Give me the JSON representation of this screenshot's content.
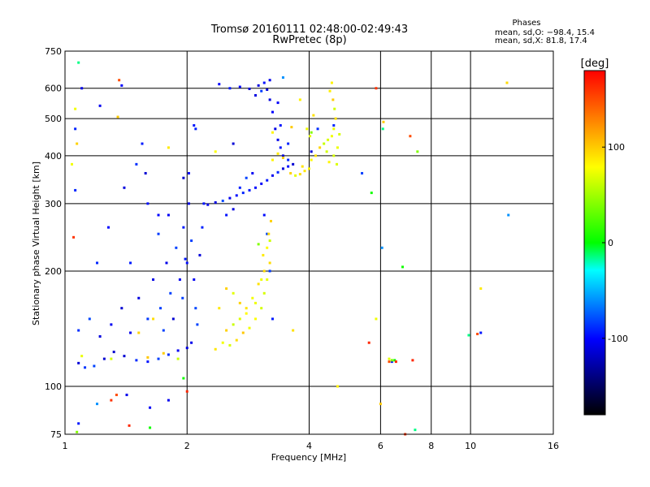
{
  "chart_data": {
    "type": "scatter",
    "title": "Tromsø 20160111 02:48:00-02:49:43",
    "subtitle": "RwPretec (8p)",
    "xlabel": "Frequency [MHz]",
    "ylabel": "Stationary phase Virtual Height [km]",
    "x_scale": "log",
    "y_scale": "log",
    "xlim": [
      1,
      16
    ],
    "ylim": [
      75,
      750
    ],
    "x_ticks": [
      1,
      2,
      4,
      6,
      8,
      10,
      16
    ],
    "y_ticks": [
      75,
      100,
      200,
      300,
      400,
      500,
      600,
      750
    ],
    "grid": true,
    "stats": {
      "heading": "Phases",
      "line_o": "mean, sd,O: −98.4, 15.4",
      "line_x": "mean, sd,X:  81.8, 17.4"
    },
    "colorbar": {
      "label": "[deg]",
      "range": [
        -180,
        180
      ],
      "ticks": [
        100,
        0,
        -100
      ],
      "colors": [
        "#ff0000",
        "#ffff00",
        "#00ff00",
        "#00ffff",
        "#0000ff",
        "#000000"
      ]
    },
    "series": [
      {
        "name": "O",
        "mean_phase": -98.4,
        "points": [
          [
            1.08,
            115
          ],
          [
            1.12,
            112
          ],
          [
            1.18,
            113
          ],
          [
            1.25,
            118
          ],
          [
            1.32,
            123
          ],
          [
            1.4,
            120
          ],
          [
            1.5,
            117
          ],
          [
            1.6,
            116
          ],
          [
            1.7,
            118
          ],
          [
            1.8,
            121
          ],
          [
            1.9,
            124
          ],
          [
            2.0,
            126
          ],
          [
            2.05,
            130
          ],
          [
            1.08,
            140
          ],
          [
            1.15,
            150
          ],
          [
            1.22,
            135
          ],
          [
            1.3,
            145
          ],
          [
            1.38,
            160
          ],
          [
            1.45,
            138
          ],
          [
            1.52,
            170
          ],
          [
            1.6,
            150
          ],
          [
            1.65,
            190
          ],
          [
            1.72,
            160
          ],
          [
            1.78,
            210
          ],
          [
            1.82,
            175
          ],
          [
            1.88,
            230
          ],
          [
            1.92,
            190
          ],
          [
            1.96,
            260
          ],
          [
            2.0,
            210
          ],
          [
            2.02,
            300
          ],
          [
            2.05,
            240
          ],
          [
            2.08,
            190
          ],
          [
            2.1,
            160
          ],
          [
            2.12,
            145
          ],
          [
            1.75,
            140
          ],
          [
            1.85,
            150
          ],
          [
            1.95,
            170
          ],
          [
            1.7,
            250
          ],
          [
            1.8,
            280
          ],
          [
            2.15,
            220
          ],
          [
            2.18,
            260
          ],
          [
            2.2,
            300
          ],
          [
            2.25,
            298
          ],
          [
            2.35,
            302
          ],
          [
            2.45,
            305
          ],
          [
            2.55,
            310
          ],
          [
            2.65,
            315
          ],
          [
            2.75,
            320
          ],
          [
            2.85,
            325
          ],
          [
            2.95,
            330
          ],
          [
            3.05,
            338
          ],
          [
            3.15,
            345
          ],
          [
            3.25,
            355
          ],
          [
            3.35,
            362
          ],
          [
            3.45,
            370
          ],
          [
            3.55,
            375
          ],
          [
            3.65,
            380
          ],
          [
            2.5,
            280
          ],
          [
            2.6,
            290
          ],
          [
            2.7,
            330
          ],
          [
            2.8,
            350
          ],
          [
            2.9,
            360
          ],
          [
            2.55,
            600
          ],
          [
            2.7,
            605
          ],
          [
            2.85,
            598
          ],
          [
            3.0,
            610
          ],
          [
            3.1,
            620
          ],
          [
            3.15,
            595
          ],
          [
            3.2,
            560
          ],
          [
            3.25,
            520
          ],
          [
            3.3,
            470
          ],
          [
            3.35,
            440
          ],
          [
            3.4,
            420
          ],
          [
            3.45,
            400
          ],
          [
            3.55,
            390
          ],
          [
            3.4,
            480
          ],
          [
            3.35,
            550
          ],
          [
            3.2,
            630
          ],
          [
            3.05,
            590
          ],
          [
            2.95,
            575
          ],
          [
            2.4,
            615
          ],
          [
            3.25,
            150
          ],
          [
            3.2,
            200
          ],
          [
            3.15,
            250
          ],
          [
            3.1,
            280
          ],
          [
            1.06,
            325
          ],
          [
            1.06,
            470
          ],
          [
            1.1,
            600
          ],
          [
            1.22,
            540
          ],
          [
            1.38,
            610
          ],
          [
            1.5,
            380
          ],
          [
            1.6,
            300
          ],
          [
            1.42,
            95
          ],
          [
            1.62,
            88
          ],
          [
            1.8,
            92
          ],
          [
            1.45,
            210
          ],
          [
            1.4,
            330
          ],
          [
            1.28,
            260
          ],
          [
            1.2,
            210
          ],
          [
            1.58,
            360
          ],
          [
            1.96,
            350
          ],
          [
            2.02,
            360
          ],
          [
            1.55,
            430
          ],
          [
            1.7,
            280
          ],
          [
            2.1,
            470
          ],
          [
            2.6,
            430
          ],
          [
            3.55,
            430
          ],
          [
            4.05,
            410
          ],
          [
            4.2,
            470
          ],
          [
            4.6,
            480
          ],
          [
            5.4,
            360
          ]
        ]
      },
      {
        "name": "X",
        "mean_phase": 81.8,
        "points": [
          [
            2.35,
            125
          ],
          [
            2.45,
            130
          ],
          [
            2.55,
            128
          ],
          [
            2.65,
            132
          ],
          [
            2.75,
            138
          ],
          [
            2.85,
            142
          ],
          [
            2.95,
            150
          ],
          [
            3.05,
            160
          ],
          [
            3.1,
            175
          ],
          [
            3.15,
            190
          ],
          [
            3.2,
            210
          ],
          [
            3.2,
            240
          ],
          [
            3.15,
            230
          ],
          [
            3.1,
            200
          ],
          [
            3.0,
            185
          ],
          [
            2.9,
            170
          ],
          [
            2.8,
            160
          ],
          [
            2.7,
            150
          ],
          [
            2.6,
            145
          ],
          [
            2.5,
            140
          ],
          [
            2.4,
            160
          ],
          [
            2.5,
            180
          ],
          [
            2.6,
            175
          ],
          [
            2.7,
            165
          ],
          [
            2.8,
            155
          ],
          [
            2.95,
            165
          ],
          [
            3.05,
            190
          ],
          [
            3.18,
            250
          ],
          [
            3.08,
            220
          ],
          [
            3.22,
            270
          ],
          [
            3.25,
            390
          ],
          [
            3.35,
            405
          ],
          [
            3.45,
            395
          ],
          [
            3.6,
            360
          ],
          [
            3.7,
            355
          ],
          [
            3.8,
            358
          ],
          [
            3.9,
            365
          ],
          [
            4.0,
            370
          ],
          [
            3.85,
            375
          ],
          [
            4.05,
            390
          ],
          [
            4.15,
            400
          ],
          [
            4.25,
            420
          ],
          [
            4.35,
            430
          ],
          [
            4.45,
            440
          ],
          [
            4.55,
            450
          ],
          [
            4.6,
            470
          ],
          [
            4.65,
            500
          ],
          [
            4.62,
            530
          ],
          [
            4.58,
            560
          ],
          [
            4.5,
            590
          ],
          [
            4.55,
            620
          ],
          [
            4.42,
            410
          ],
          [
            4.6,
            400
          ],
          [
            4.7,
            420
          ],
          [
            4.68,
            380
          ],
          [
            4.75,
            455
          ],
          [
            4.02,
            450
          ],
          [
            4.1,
            510
          ],
          [
            3.95,
            470
          ],
          [
            4.48,
            385
          ],
          [
            1.06,
            530
          ],
          [
            1.07,
            430
          ],
          [
            1.04,
            380
          ],
          [
            1.1,
            120
          ],
          [
            1.3,
            118
          ],
          [
            1.6,
            119
          ],
          [
            1.75,
            122
          ],
          [
            1.9,
            118
          ],
          [
            1.65,
            150
          ],
          [
            1.52,
            138
          ],
          [
            1.8,
            420
          ],
          [
            2.35,
            410
          ],
          [
            3.25,
            460
          ],
          [
            4.7,
            100
          ],
          [
            6.3,
            118
          ],
          [
            3.8,
            560
          ],
          [
            10.6,
            180
          ],
          [
            12.3,
            620
          ],
          [
            5.85,
            150
          ],
          [
            3.65,
            140
          ]
        ]
      },
      {
        "name": "other",
        "points": [
          [
            6.3,
            116
          ],
          [
            6.4,
            116
          ],
          [
            6.5,
            117
          ],
          [
            6.55,
            116
          ],
          [
            6.4,
            117
          ],
          [
            6.05,
            230
          ],
          [
            6.1,
            490
          ],
          [
            5.85,
            600
          ],
          [
            9.9,
            136
          ],
          [
            10.4,
            137
          ],
          [
            10.6,
            138
          ],
          [
            6.8,
            205
          ],
          [
            7.2,
            117
          ],
          [
            7.4,
            410
          ],
          [
            12.4,
            280
          ],
          [
            6.0,
            90
          ],
          [
            6.9,
            75
          ],
          [
            7.3,
            77
          ],
          [
            1.34,
            95
          ],
          [
            1.08,
            80
          ],
          [
            1.62,
            78
          ],
          [
            1.44,
            79
          ],
          [
            1.07,
            76
          ],
          [
            1.2,
            90
          ],
          [
            1.35,
            505
          ],
          [
            1.05,
            245
          ],
          [
            1.08,
            700
          ],
          [
            1.36,
            630
          ],
          [
            1.98,
            215
          ],
          [
            1.96,
            105
          ],
          [
            2.0,
            97
          ],
          [
            4.05,
            460
          ],
          [
            3.45,
            640
          ],
          [
            3.62,
            475
          ],
          [
            1.3,
            92
          ],
          [
            6.08,
            470
          ],
          [
            7.1,
            450
          ],
          [
            2.08,
            480
          ],
          [
            5.7,
            320
          ],
          [
            5.62,
            130
          ],
          [
            3.0,
            235
          ]
        ]
      }
    ]
  }
}
